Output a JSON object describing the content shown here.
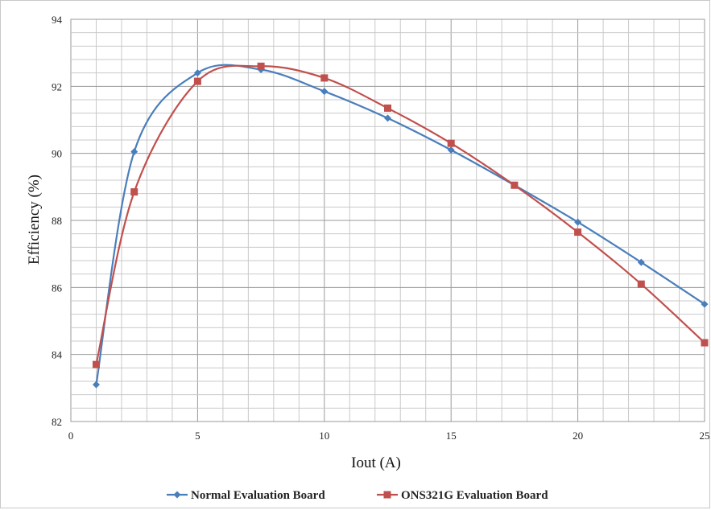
{
  "chart_data": {
    "type": "line",
    "xlabel": "Iout (A)",
    "ylabel": "Efficiency (%)",
    "xlim": [
      0,
      25
    ],
    "ylim": [
      82,
      94
    ],
    "x_ticks": [
      "0",
      "5",
      "10",
      "15",
      "20",
      "25"
    ],
    "y_ticks": [
      "82",
      "84",
      "86",
      "88",
      "90",
      "92",
      "94"
    ],
    "x_minor_step": 1,
    "y_minor_step": 0.4,
    "grid": true,
    "legend_position": "bottom",
    "series": [
      {
        "name": "Normal Evaluation Board",
        "color": "#4a7ebb",
        "marker": "diamond",
        "x": [
          1,
          2.5,
          5,
          7.5,
          10,
          12.5,
          15,
          17.5,
          20,
          22.5,
          25
        ],
        "y": [
          83.1,
          90.05,
          92.4,
          92.5,
          91.85,
          91.05,
          90.1,
          89.05,
          87.95,
          86.75,
          85.5
        ]
      },
      {
        "name": "ONS321G Evaluation Board",
        "color": "#c0504d",
        "marker": "square",
        "x": [
          1,
          2.5,
          5,
          7.5,
          10,
          12.5,
          15,
          17.5,
          20,
          22.5,
          25
        ],
        "y": [
          83.7,
          88.85,
          92.15,
          92.6,
          92.25,
          91.35,
          90.3,
          89.05,
          87.65,
          86.1,
          84.35
        ]
      }
    ]
  }
}
